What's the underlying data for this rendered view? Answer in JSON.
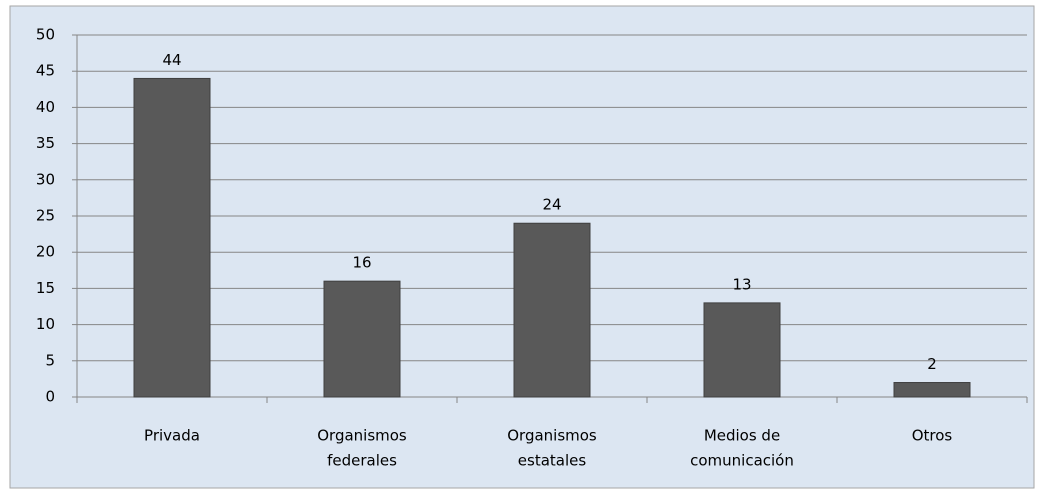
{
  "chart_data": {
    "type": "bar",
    "categories": [
      [
        "Privada"
      ],
      [
        "Organismos",
        "federales"
      ],
      [
        "Organismos",
        "estatales"
      ],
      [
        "Medios de",
        "comunicación"
      ],
      [
        "Otros"
      ]
    ],
    "values": [
      44,
      16,
      24,
      13,
      2
    ],
    "color": "#595959",
    "ylim": [
      0,
      50
    ],
    "yticks": [
      0,
      5,
      10,
      15,
      20,
      25,
      30,
      35,
      40,
      45,
      50
    ],
    "grid": true
  }
}
